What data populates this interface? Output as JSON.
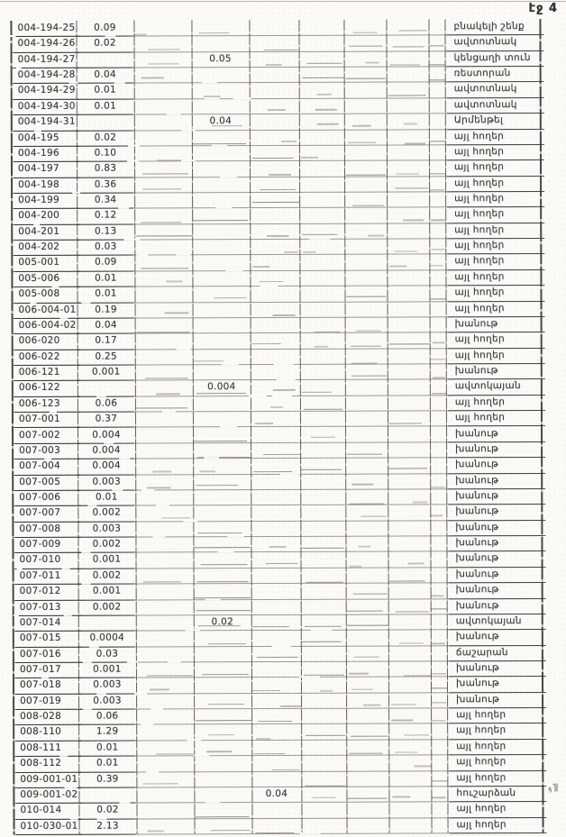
{
  "page": {
    "header_label": "էջ 4"
  },
  "table": {
    "row_fields": [
      "parcel_id",
      "area",
      "value_col4",
      "value_col5",
      "land_use"
    ],
    "rows": [
      [
        "004-194-25",
        "0.09",
        "",
        "",
        "բնակելի շենք"
      ],
      [
        "004-194-26",
        "0.02",
        "",
        "",
        "ավտոտնակ"
      ],
      [
        "004-194-27",
        "",
        "0.05",
        "",
        "կենցաղի տուն"
      ],
      [
        "004-194-28",
        "0.04",
        "",
        "",
        "ռեստորան"
      ],
      [
        "004-194-29",
        "0.01",
        "",
        "",
        "ավտոտնակ"
      ],
      [
        "004-194-30",
        "0.01",
        "",
        "",
        "ավտոտնակ"
      ],
      [
        "004-194-31",
        "",
        "0.04",
        "",
        "Արմենթել"
      ],
      [
        "004-195",
        "0.02",
        "",
        "",
        "այլ հողեր"
      ],
      [
        "004-196",
        "0.10",
        "",
        "",
        "այլ հողեր"
      ],
      [
        "004-197",
        "0.83",
        "",
        "",
        "այլ հողեր"
      ],
      [
        "004-198",
        "0.36",
        "",
        "",
        "այլ հողեր"
      ],
      [
        "004-199",
        "0.34",
        "",
        "",
        "այլ հողեր"
      ],
      [
        "004-200",
        "0.12",
        "",
        "",
        "այլ հողեր"
      ],
      [
        "004-201",
        "0.13",
        "",
        "",
        "այլ հողեր"
      ],
      [
        "004-202",
        "0.03",
        "",
        "",
        "այլ հողեր"
      ],
      [
        "005-001",
        "0.09",
        "",
        "",
        "այլ հողեր"
      ],
      [
        "005-006",
        "0.01",
        "",
        "",
        "այլ հողեր"
      ],
      [
        "005-008",
        "0.01",
        "",
        "",
        "այլ հողեր"
      ],
      [
        "006-004-01",
        "0.19",
        "",
        "",
        "այլ հողեր"
      ],
      [
        "006-004-02",
        "0.04",
        "",
        "",
        "խանութ"
      ],
      [
        "006-020",
        "0.17",
        "",
        "",
        "այլ հողեր"
      ],
      [
        "006-022",
        "0.25",
        "",
        "",
        "այլ հողեր"
      ],
      [
        "006-121",
        "0.001",
        "",
        "",
        "խանութ"
      ],
      [
        "006-122",
        "",
        "0.004",
        "",
        "ավտոկայան"
      ],
      [
        "006-123",
        "0.06",
        "",
        "",
        "այլ հողեր"
      ],
      [
        "007-001",
        "0.37",
        "",
        "",
        "այլ հողեր"
      ],
      [
        "007-002",
        "0.004",
        "",
        "",
        "խանութ"
      ],
      [
        "007-003",
        "0.004",
        "",
        "",
        "խանութ"
      ],
      [
        "007-004",
        "0.004",
        "",
        "",
        "խանութ"
      ],
      [
        "007-005",
        "0.003",
        "",
        "",
        "խանութ"
      ],
      [
        "007-006",
        "0.01",
        "",
        "",
        "խանութ"
      ],
      [
        "007-007",
        "0.002",
        "",
        "",
        "խանութ"
      ],
      [
        "007-008",
        "0.003",
        "",
        "",
        "խանութ"
      ],
      [
        "007-009",
        "0.002",
        "",
        "",
        "խանութ"
      ],
      [
        "007-010",
        "0.001",
        "",
        "",
        "խանութ"
      ],
      [
        "007-011",
        "0.002",
        "",
        "",
        "խանութ"
      ],
      [
        "007-012",
        "0.001",
        "",
        "",
        "խանութ"
      ],
      [
        "007-013",
        "0.002",
        "",
        "",
        "խանութ"
      ],
      [
        "007-014",
        "",
        "0.02",
        "",
        "ավտոկայան"
      ],
      [
        "007-015",
        "0.0004",
        "",
        "",
        "խանութ"
      ],
      [
        "007-016",
        "0.03",
        "",
        "",
        "ճաշարան"
      ],
      [
        "007-017",
        "0.001",
        "",
        "",
        "խանութ"
      ],
      [
        "007-018",
        "0.003",
        "",
        "",
        "խանութ"
      ],
      [
        "007-019",
        "0.003",
        "",
        "",
        "խանութ"
      ],
      [
        "008-028",
        "0.06",
        "",
        "",
        "այլ հողեր"
      ],
      [
        "008-110",
        "1.29",
        "",
        "",
        "այլ հողեր"
      ],
      [
        "008-111",
        "0.01",
        "",
        "",
        "այլ հողեր"
      ],
      [
        "008-112",
        "0.01",
        "",
        "",
        "այլ հողեր"
      ],
      [
        "009-001-01",
        "0.39",
        "",
        "",
        "այլ հողեր"
      ],
      [
        "009-001-02",
        "",
        "",
        "0.04",
        "հուշարձան"
      ],
      [
        "010-014",
        "0.02",
        "",
        "",
        "այլ հողեր"
      ],
      [
        "010-030-01",
        "2.13",
        "",
        "",
        "այլ հողեր"
      ]
    ]
  },
  "annotations": {
    "handwritten_mark": "illegible scribble"
  },
  "colors": {
    "paper": "#fbfaf7",
    "ink": "#3b3b3b",
    "grid_line": "#46423e"
  }
}
